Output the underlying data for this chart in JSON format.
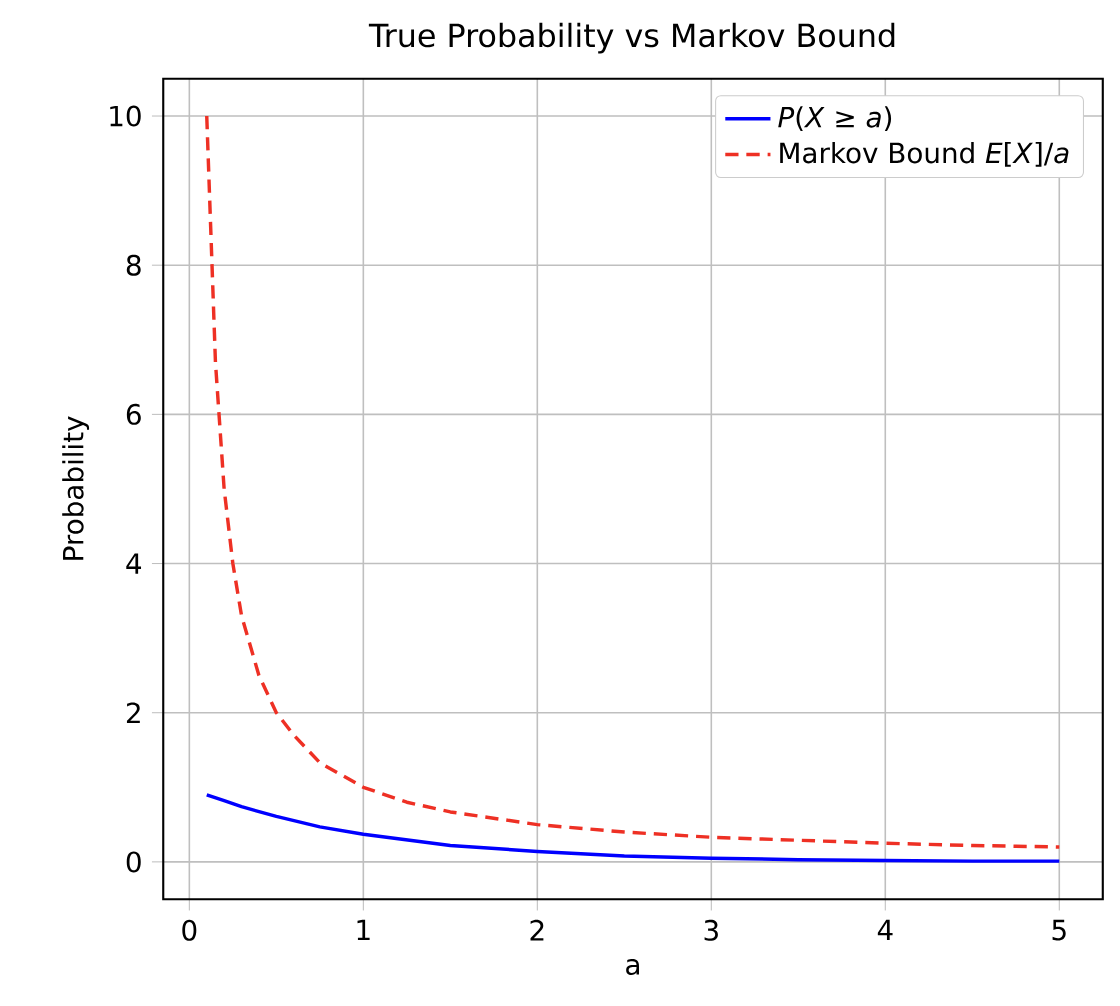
{
  "chart_data": {
    "type": "line",
    "title": "True Probability vs Markov Bound",
    "xlabel": "a",
    "ylabel": "Probability",
    "xlim": [
      -0.15,
      5.25
    ],
    "ylim": [
      -0.5,
      10.5
    ],
    "xticks": [
      0,
      1,
      2,
      3,
      4,
      5
    ],
    "yticks": [
      0,
      2,
      4,
      6,
      8,
      10
    ],
    "grid": true,
    "legend": "top right",
    "series": [
      {
        "name": "*P*(*X* ≥ *a*)",
        "color": "#0000ff",
        "line_style": "solid",
        "x": [
          0.1,
          0.2,
          0.3,
          0.5,
          0.75,
          1,
          1.5,
          2,
          2.5,
          3,
          3.5,
          4,
          4.5,
          5
        ],
        "values": [
          0.9,
          0.82,
          0.74,
          0.61,
          0.47,
          0.37,
          0.22,
          0.14,
          0.08,
          0.05,
          0.03,
          0.02,
          0.01,
          0.01
        ]
      },
      {
        "name": "Markov Bound *E*[*X*]/*a*",
        "color": "#ee3024",
        "line_style": "dashed",
        "x": [
          0.1,
          0.15,
          0.2,
          0.25,
          0.3,
          0.4,
          0.5,
          0.6,
          0.75,
          1,
          1.25,
          1.5,
          2,
          2.5,
          3,
          3.5,
          4,
          4.5,
          5
        ],
        "values": [
          10,
          6.7,
          5,
          4,
          3.3,
          2.5,
          2,
          1.7,
          1.33,
          1,
          0.8,
          0.67,
          0.5,
          0.4,
          0.33,
          0.29,
          0.25,
          0.22,
          0.2
        ]
      }
    ]
  }
}
